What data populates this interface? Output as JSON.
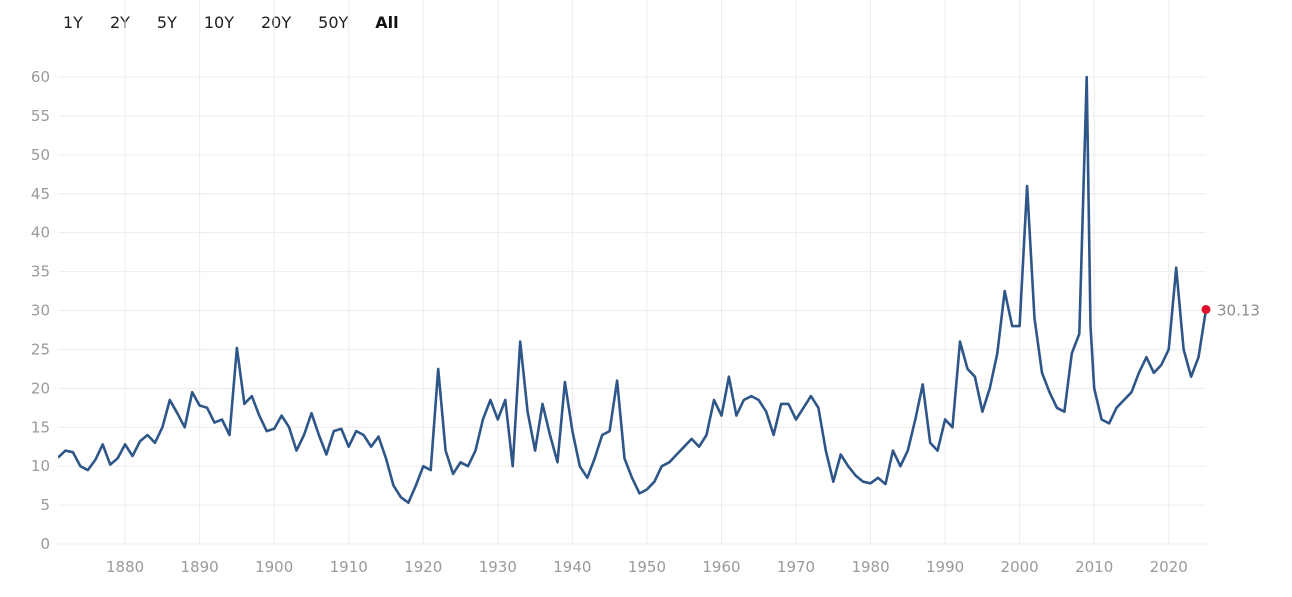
{
  "range_buttons": [
    {
      "label": "1Y",
      "active": false
    },
    {
      "label": "2Y",
      "active": false
    },
    {
      "label": "5Y",
      "active": false
    },
    {
      "label": "10Y",
      "active": false
    },
    {
      "label": "20Y",
      "active": false
    },
    {
      "label": "50Y",
      "active": false
    },
    {
      "label": "All",
      "active": true
    }
  ],
  "chart_data": {
    "type": "line",
    "title": "",
    "xlabel": "",
    "ylabel": "",
    "xlim": [
      1871,
      2025
    ],
    "ylim": [
      0,
      60
    ],
    "x_ticks": [
      1880,
      1890,
      1900,
      1910,
      1920,
      1930,
      1940,
      1950,
      1960,
      1970,
      1980,
      1990,
      2000,
      2010,
      2020
    ],
    "y_ticks": [
      0,
      5,
      10,
      15,
      20,
      25,
      30,
      35,
      40,
      45,
      50,
      55,
      60
    ],
    "grid": true,
    "colors": {
      "line": "#2f5688",
      "last_point": "#e0102d",
      "grid": "#ececec"
    },
    "last_value_label": "30.13",
    "series": [
      {
        "name": "",
        "x": [
          1871,
          1872,
          1873,
          1874,
          1875,
          1876,
          1877,
          1878,
          1879,
          1880,
          1881,
          1882,
          1883,
          1884,
          1885,
          1886,
          1887,
          1888,
          1889,
          1890,
          1891,
          1892,
          1893,
          1894,
          1895,
          1896,
          1897,
          1898,
          1899,
          1900,
          1901,
          1902,
          1903,
          1904,
          1905,
          1906,
          1907,
          1908,
          1909,
          1910,
          1911,
          1912,
          1913,
          1914,
          1915,
          1916,
          1917,
          1918,
          1919,
          1920,
          1921,
          1922,
          1923,
          1924,
          1925,
          1926,
          1927,
          1928,
          1929,
          1930,
          1931,
          1932,
          1933,
          1934,
          1935,
          1936,
          1937,
          1938,
          1939,
          1940,
          1941,
          1942,
          1943,
          1944,
          1945,
          1946,
          1947,
          1948,
          1949,
          1950,
          1951,
          1952,
          1953,
          1954,
          1955,
          1956,
          1957,
          1958,
          1959,
          1960,
          1961,
          1962,
          1963,
          1964,
          1965,
          1966,
          1967,
          1968,
          1969,
          1970,
          1971,
          1972,
          1973,
          1974,
          1975,
          1976,
          1977,
          1978,
          1979,
          1980,
          1981,
          1982,
          1983,
          1984,
          1985,
          1986,
          1987,
          1988,
          1989,
          1990,
          1991,
          1992,
          1993,
          1994,
          1995,
          1996,
          1997,
          1998,
          1999,
          2000,
          2001,
          2002,
          2003,
          2004,
          2005,
          2006,
          2007,
          2008,
          2009,
          2009.5,
          2010,
          2011,
          2012,
          2013,
          2014,
          2015,
          2016,
          2017,
          2018,
          2019,
          2020,
          2021,
          2022,
          2023,
          2024,
          2025
        ],
        "values": [
          11.1,
          12.0,
          11.8,
          10.0,
          9.5,
          10.8,
          12.8,
          10.2,
          11.0,
          12.8,
          11.3,
          13.2,
          14.0,
          13.0,
          15.0,
          18.5,
          16.8,
          15.0,
          19.5,
          17.8,
          17.5,
          15.6,
          16.0,
          14.0,
          25.2,
          18.0,
          19.0,
          16.5,
          14.5,
          14.8,
          16.5,
          15.0,
          12.0,
          14.0,
          16.8,
          14.0,
          11.5,
          14.5,
          14.8,
          12.5,
          14.5,
          14.0,
          12.5,
          13.8,
          11.0,
          7.5,
          6.0,
          5.3,
          7.5,
          10.0,
          9.5,
          22.5,
          12.0,
          9.0,
          10.5,
          10.0,
          12.0,
          16.0,
          18.5,
          16.0,
          18.5,
          10.0,
          26.0,
          17.0,
          12.0,
          18.0,
          14.0,
          10.5,
          20.8,
          14.5,
          10.0,
          8.5,
          11.0,
          14.0,
          14.5,
          21.0,
          11.0,
          8.5,
          6.5,
          7.0,
          8.0,
          10.0,
          10.5,
          11.5,
          12.5,
          13.5,
          12.5,
          14.0,
          18.5,
          16.5,
          21.5,
          16.5,
          18.5,
          19.0,
          18.5,
          17.0,
          14.0,
          18.0,
          18.0,
          16.0,
          17.5,
          19.0,
          17.5,
          12.0,
          8.0,
          11.5,
          10.0,
          8.8,
          8.0,
          7.8,
          8.5,
          7.7,
          12.0,
          10.0,
          12.0,
          16.0,
          20.5,
          13.0,
          12.0,
          16.0,
          15.0,
          26.0,
          22.5,
          21.5,
          17.0,
          20.0,
          24.5,
          32.5,
          28.0,
          28.0,
          46.0,
          29.0,
          22.0,
          19.5,
          17.5,
          17.0,
          24.5,
          27.0,
          60.0,
          28.0,
          20.0,
          16.0,
          15.5,
          17.5,
          18.5,
          19.5,
          22.0,
          24.0,
          22.0,
          23.0,
          25.0,
          35.5,
          25.0,
          21.5,
          24.0,
          30.13
        ]
      }
    ]
  }
}
